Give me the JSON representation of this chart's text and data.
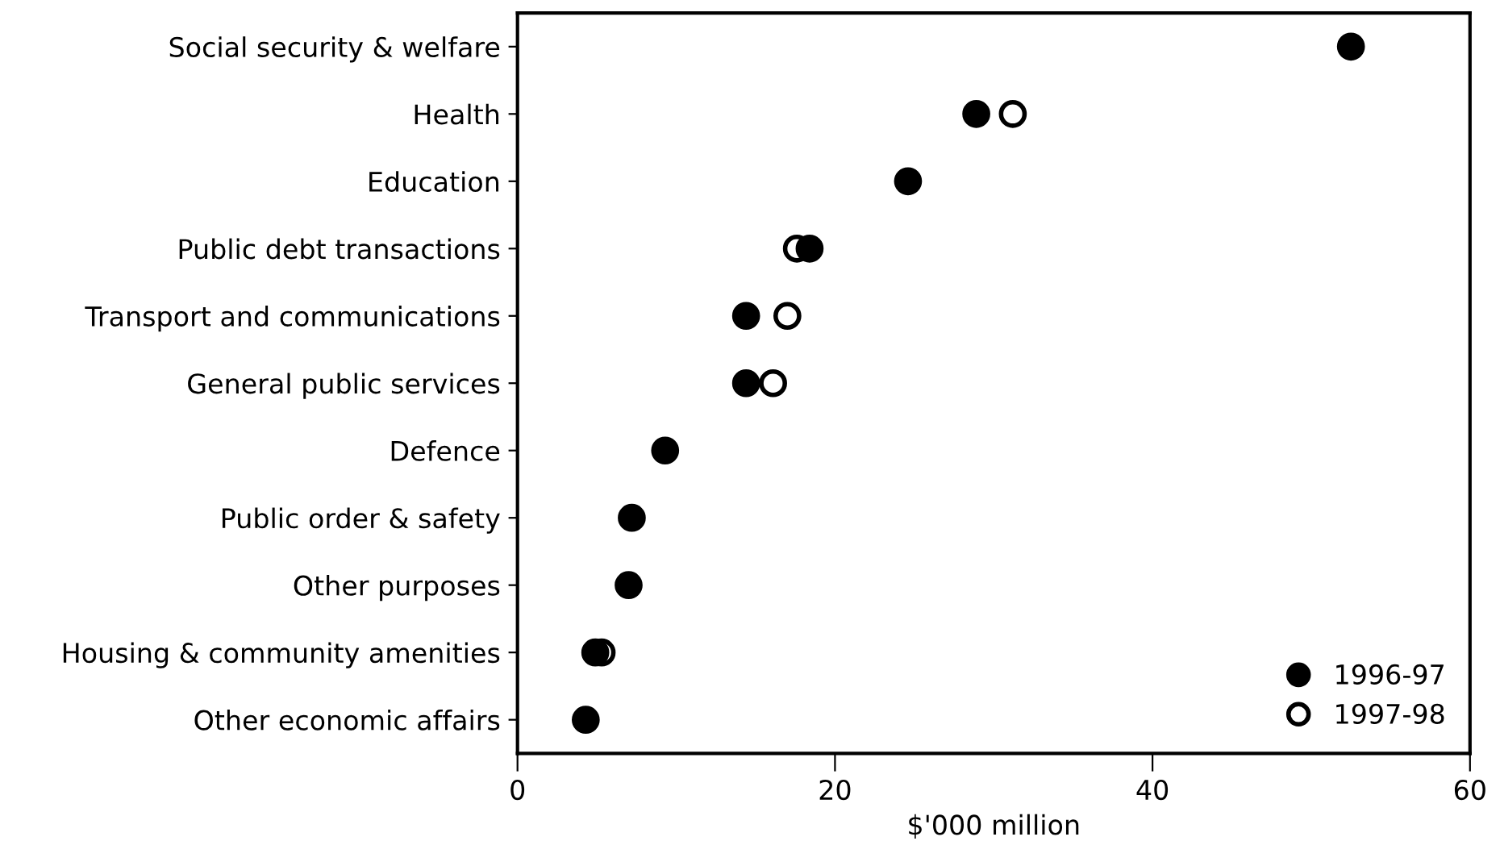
{
  "chart_data": {
    "type": "scatter",
    "xlabel": "$'000 million",
    "categories": [
      "Social security & welfare",
      "Health",
      "Education",
      "Public debt transactions",
      "Transport and communications",
      "General public services",
      "Defence",
      "Public order & safety",
      "Other purposes",
      "Housing & community amenities",
      "Other economic affairs"
    ],
    "orientation": "horizontal",
    "series": [
      {
        "name": "1997-98",
        "color": "#ffffff",
        "values": [
          null,
          31.2,
          null,
          17.6,
          17.0,
          16.1,
          null,
          null,
          null,
          5.3,
          null
        ]
      },
      {
        "name": "1996-97",
        "color": "#000000",
        "values": [
          52.5,
          28.9,
          24.6,
          18.4,
          14.4,
          14.4,
          9.3,
          7.2,
          7.0,
          4.9,
          4.3
        ]
      }
    ],
    "xlim": [
      0,
      60
    ],
    "xticks": [
      0,
      20,
      40,
      60
    ],
    "marker": "circle",
    "grid": false,
    "legend": "bottom right"
  }
}
